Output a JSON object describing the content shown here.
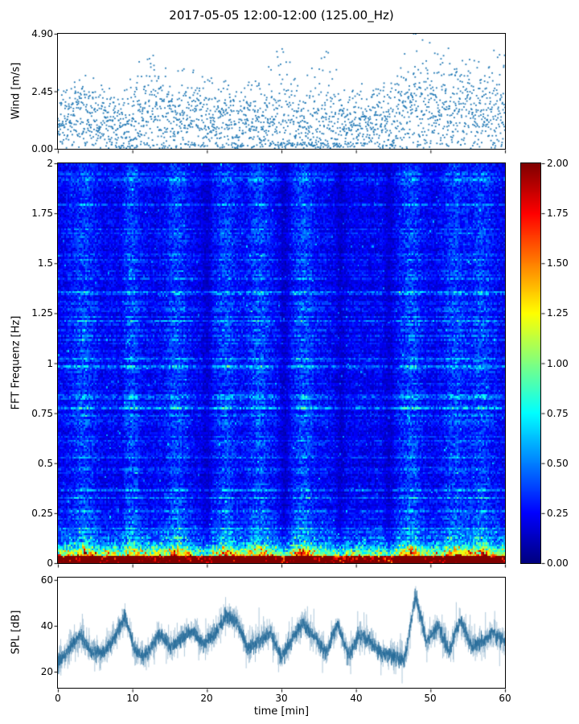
{
  "title": "2017-05-05 12:00-12:00 (125.00_Hz)",
  "colors": {
    "scatter_point": "#1f77b4",
    "spl_line_core": "rgba(38,108,154,0.85)",
    "spl_line_fuzz": "rgba(72,131,171,0.35)",
    "axis": "#000000",
    "background": "#ffffff"
  },
  "chart_data": [
    {
      "type": "scatter",
      "name": "wind-speed",
      "ylabel": "Wind [m/s]",
      "ylim": [
        0,
        4.9
      ],
      "ytick_labels": [
        "4.90",
        "2.45",
        "0.00"
      ],
      "ytick_values": [
        4.9,
        2.45,
        0
      ],
      "xlim": [
        0,
        60
      ],
      "marker": "point",
      "envelope_x": [
        0,
        3,
        6,
        9,
        12,
        15,
        18,
        21,
        24,
        27,
        30,
        33,
        36,
        39,
        42,
        45,
        48,
        51,
        54,
        57,
        60
      ],
      "envelope_mean": [
        1.1,
        1.5,
        1.1,
        0.9,
        1.4,
        1.3,
        1.4,
        1.1,
        1.0,
        1.1,
        1.3,
        0.9,
        1.2,
        1.0,
        1.0,
        1.2,
        2.1,
        1.7,
        1.8,
        1.6,
        1.8
      ],
      "envelope_max": [
        2.4,
        3.3,
        2.9,
        2.6,
        4.0,
        3.2,
        3.3,
        2.8,
        2.6,
        2.9,
        4.2,
        2.6,
        4.4,
        2.7,
        2.6,
        3.0,
        4.9,
        4.0,
        4.3,
        3.9,
        4.4
      ]
    },
    {
      "type": "heatmap",
      "name": "fft-spectrogram",
      "ylabel": "FFT Frequenz [Hz]",
      "ylim": [
        0,
        2
      ],
      "ytick_labels": [
        "2",
        "1.75",
        "1.5",
        "1.25",
        "1",
        "0.75",
        "0.5",
        "0.25",
        "0"
      ],
      "xlim": [
        0,
        60
      ],
      "colormap": "jet",
      "value_range": [
        0,
        2
      ],
      "colorbar_tick_labels": [
        "2.00",
        "1.75",
        "1.50",
        "1.25",
        "1.00",
        "0.75",
        "0.50",
        "0.25",
        "0.00"
      ],
      "bright_columns_min": [
        3.5,
        9.5,
        16,
        22.5,
        27,
        33,
        47.5,
        53.5,
        57
      ],
      "dark_columns_min": [
        8.5,
        20,
        30.5,
        38,
        44.5
      ],
      "low_freq_band_hz": 0.28,
      "description": "Background mostly 0.1-0.5 (dark blue to blue) with horizontal streaks; bright yellow/orange/red bands below ~0.1 Hz; cyan-green streaks up to ~1 Hz in gusty columns"
    },
    {
      "type": "line",
      "name": "spl",
      "ylabel": "SPL [dB]",
      "ylim": [
        13,
        61
      ],
      "ytick_labels": [
        "60",
        "40",
        "20"
      ],
      "ytick_values": [
        60,
        40,
        20
      ],
      "xlabel": "time [min]",
      "xlim": [
        0,
        60
      ],
      "xtick_labels": [
        "0",
        "10",
        "20",
        "30",
        "40",
        "50",
        "60"
      ],
      "xtick_values": [
        0,
        10,
        20,
        30,
        40,
        50,
        60
      ],
      "x": [
        0,
        1.5,
        3,
        4.5,
        6,
        7.5,
        9,
        10.5,
        12,
        13.5,
        15,
        16.5,
        18,
        19.5,
        21,
        22.5,
        24,
        25.5,
        27,
        28.5,
        30,
        31.5,
        33,
        34.5,
        36,
        37.5,
        39,
        40.5,
        42,
        43.5,
        45,
        46.5,
        48,
        49.5,
        51,
        52.5,
        54,
        55.5,
        57,
        58.5,
        60
      ],
      "y_mean": [
        24,
        30,
        36,
        29,
        28,
        34,
        44,
        28,
        27,
        37,
        31,
        34,
        38,
        32,
        36,
        44,
        42,
        30,
        33,
        37,
        26,
        35,
        41,
        35,
        28,
        41,
        27,
        36,
        33,
        28,
        27,
        25,
        53,
        33,
        40,
        29,
        43,
        31,
        33,
        37,
        33
      ]
    }
  ]
}
